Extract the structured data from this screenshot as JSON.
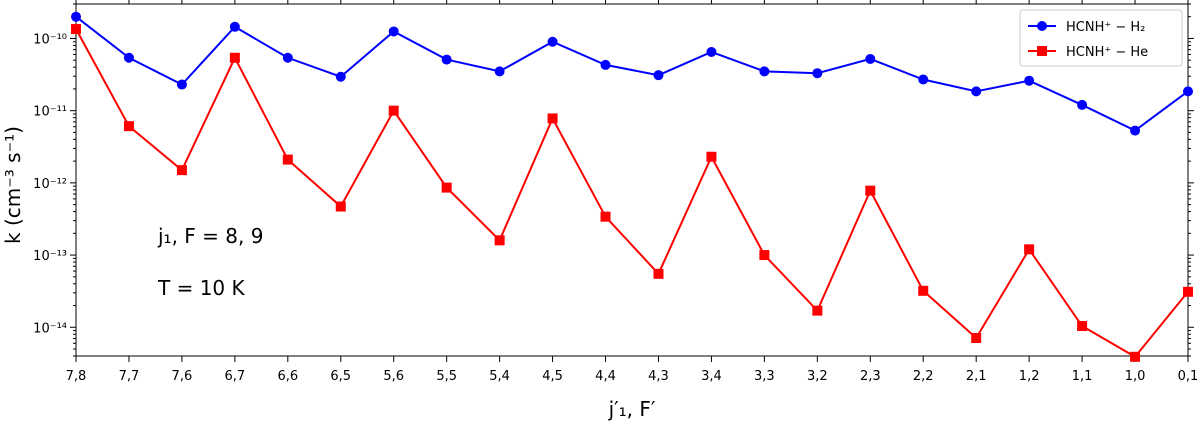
{
  "chart_data": {
    "type": "line",
    "xlabel": "j′₁, F′",
    "ylabel": "k (cm⁻³ s⁻¹)",
    "yscale": "log",
    "ylim": [
      4e-15,
      3e-10
    ],
    "grid": false,
    "legend_position": "top-right",
    "categories": [
      "7,8",
      "7,7",
      "7,6",
      "6,7",
      "6,6",
      "6,5",
      "5,6",
      "5,5",
      "5,4",
      "4,5",
      "4,4",
      "4,3",
      "3,4",
      "3,3",
      "3,2",
      "2,3",
      "2,2",
      "2,1",
      "1,2",
      "1,1",
      "1,0",
      "0,1"
    ],
    "y_ticks": [
      {
        "value": 1e-10,
        "label": "10⁻¹⁰"
      },
      {
        "value": 1e-11,
        "label": "10⁻¹¹"
      },
      {
        "value": 1e-12,
        "label": "10⁻¹²"
      },
      {
        "value": 1e-13,
        "label": "10⁻¹³"
      },
      {
        "value": 1e-14,
        "label": "10⁻¹⁴"
      }
    ],
    "series": [
      {
        "name": "HCNH⁺ − H₂",
        "color": "#0000ff",
        "marker": "circle",
        "values": [
          2e-10,
          5.4e-11,
          2.3e-11,
          1.45e-10,
          5.4e-11,
          2.95e-11,
          1.25e-10,
          5.1e-11,
          3.5e-11,
          9e-11,
          4.3e-11,
          3.1e-11,
          6.5e-11,
          3.5e-11,
          3.3e-11,
          5.2e-11,
          2.7e-11,
          1.85e-11,
          2.6e-11,
          1.2e-11,
          5.3e-12,
          1.85e-11
        ]
      },
      {
        "name": "HCNH⁺ − He",
        "color": "#ff0000",
        "marker": "square",
        "values": [
          1.35e-10,
          6.1e-12,
          1.5e-12,
          5.4e-11,
          2.1e-12,
          4.7e-13,
          1e-11,
          8.6e-13,
          1.6e-13,
          7.8e-12,
          3.4e-13,
          5.5e-14,
          2.3e-12,
          1e-13,
          1.7e-14,
          7.8e-13,
          3.2e-14,
          7.1e-15,
          1.2e-13,
          1.04e-14,
          3.9e-15,
          3.1e-14
        ]
      }
    ],
    "annotations": [
      {
        "text": "j₁, F = 8, 9"
      },
      {
        "text": "T = 10 K"
      }
    ]
  }
}
